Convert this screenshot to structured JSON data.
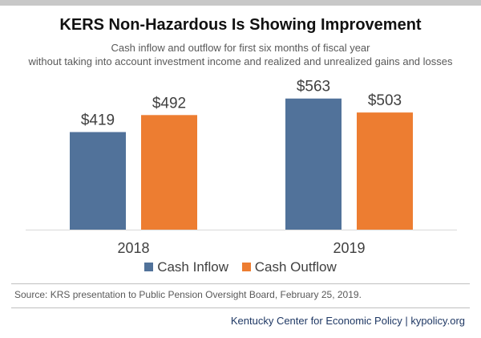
{
  "title": "KERS Non-Hazardous Is Showing Improvement",
  "subtitle": [
    "Cash inflow and outflow for first six months of fiscal year",
    "without taking into account investment income and realized and unrealized gains and losses"
  ],
  "source": "Source: KRS presentation to Public Pension Oversight Board, February 25, 2019.",
  "footer": "Kentucky Center for Economic Policy | kypolicy.org",
  "colors": {
    "inflow": "#51729a",
    "outflow": "#ed7d31",
    "axis": "#d9d9d9"
  },
  "chart_data": {
    "type": "bar",
    "title": "KERS Non-Hazardous Is Showing Improvement",
    "categories": [
      "2018",
      "2019"
    ],
    "series": [
      {
        "name": "Cash Inflow",
        "values": [
          419,
          563
        ],
        "labels": [
          "$419",
          "$563"
        ]
      },
      {
        "name": "Cash Outflow",
        "values": [
          492,
          503
        ],
        "labels": [
          "$492",
          "$503"
        ]
      }
    ],
    "ylim": [
      0,
      600
    ],
    "grid": false,
    "legend": "bottom",
    "data_labels": true
  }
}
